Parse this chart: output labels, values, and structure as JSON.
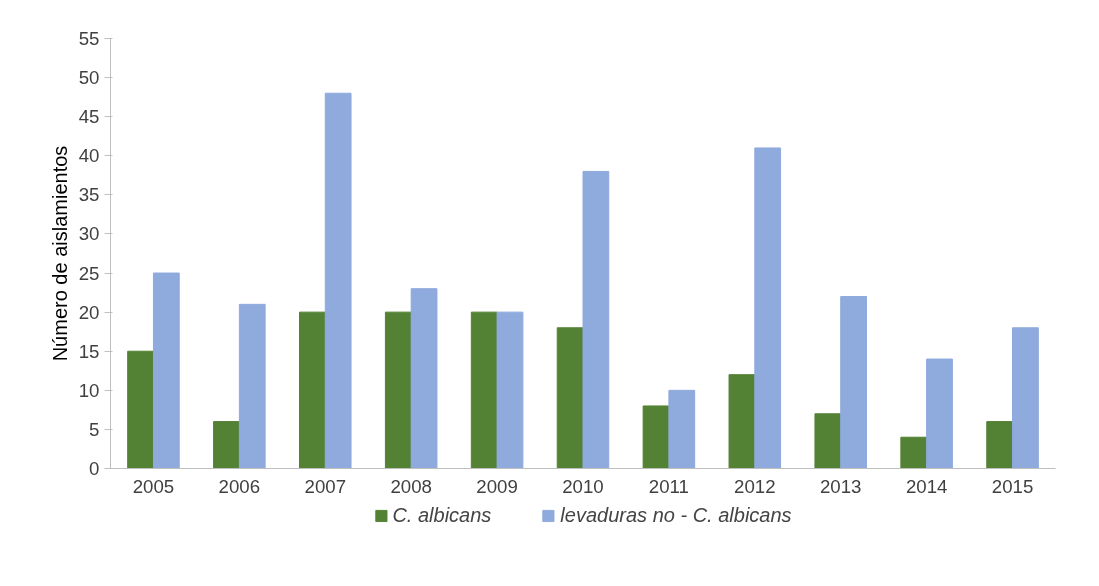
{
  "chart_data": {
    "type": "bar",
    "ylabel": "Número de aislamientos",
    "categories": [
      "2005",
      "2006",
      "2007",
      "2008",
      "2009",
      "2010",
      "2011",
      "2012",
      "2013",
      "2014",
      "2015"
    ],
    "series": [
      {
        "name": "C. albicans",
        "color": "#548235",
        "values": [
          15,
          6,
          20,
          20,
          20,
          18,
          8,
          12,
          7,
          4,
          6
        ]
      },
      {
        "name": "levaduras no - C. albicans",
        "color": "#8faadc",
        "values": [
          25,
          21,
          48,
          23,
          20,
          38,
          10,
          41,
          22,
          14,
          18
        ]
      }
    ],
    "ylim": [
      0,
      55
    ],
    "yticks": [
      0,
      5,
      10,
      15,
      20,
      25,
      30,
      35,
      40,
      45,
      50,
      55
    ],
    "grid": false,
    "legend": "bottom"
  }
}
